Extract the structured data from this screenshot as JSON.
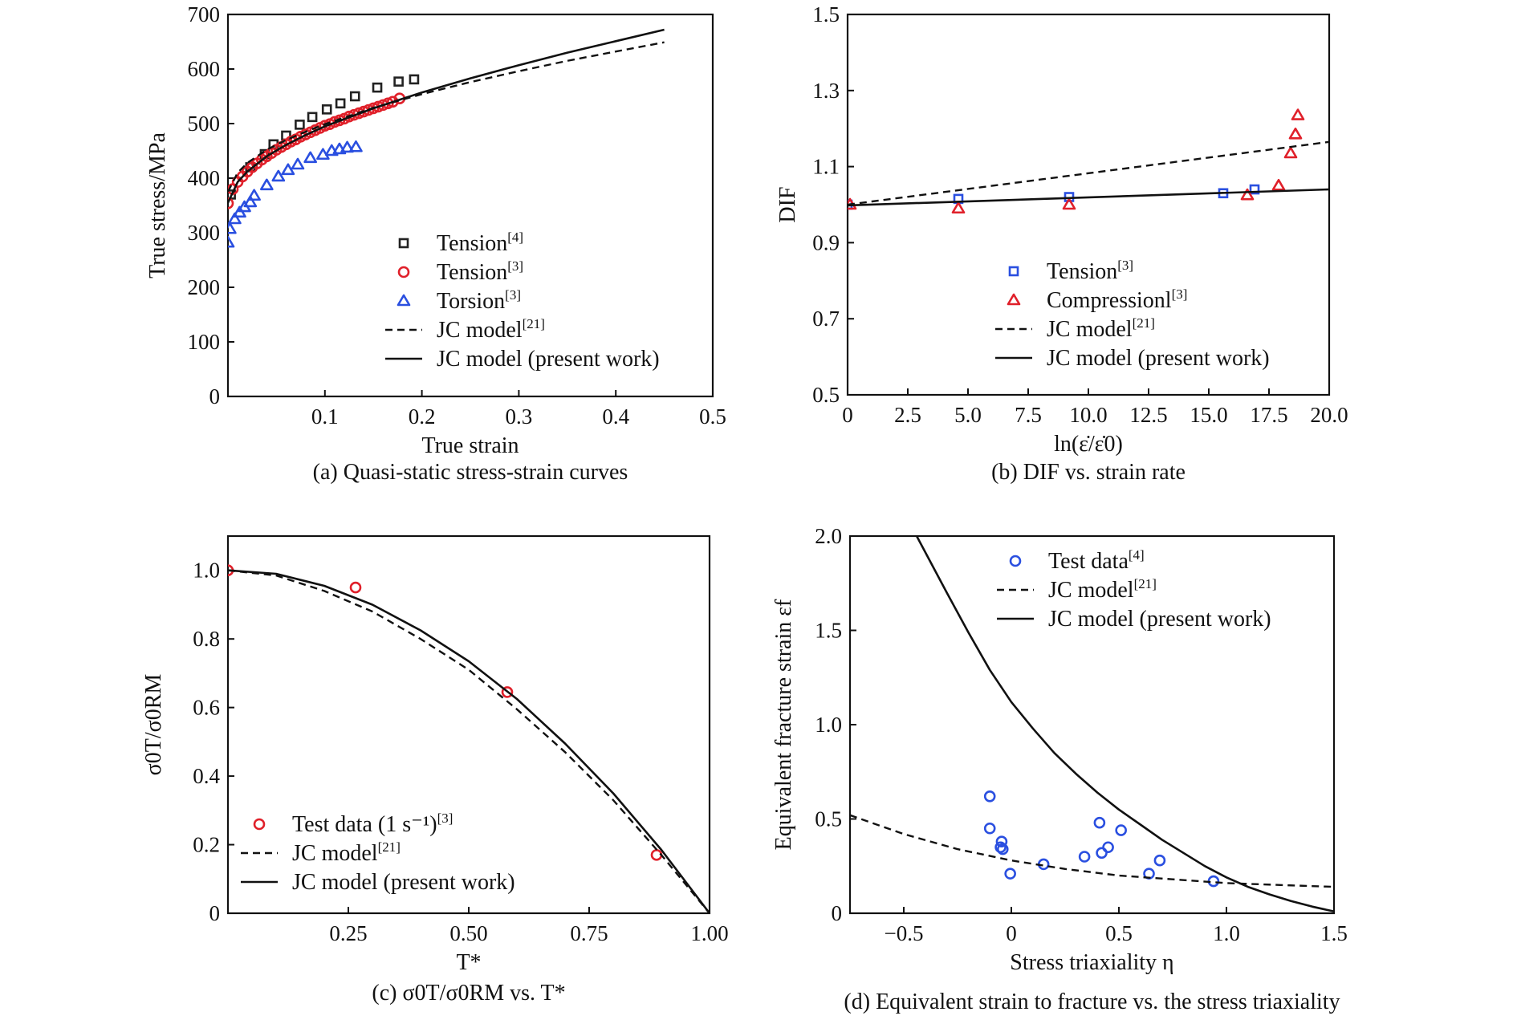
{
  "chart_data": [
    {
      "id": "a",
      "type": "scatter",
      "caption": "(a) Quasi-static stress-strain curves",
      "xlabel": "True strain",
      "ylabel": "True stress/MPa",
      "xlim": [
        0,
        0.5
      ],
      "ylim": [
        0,
        700
      ],
      "xticks": [
        0.1,
        0.2,
        0.3,
        0.4,
        0.5
      ],
      "xtick_labels": [
        "0.1",
        "0.2",
        "0.3",
        "0.4",
        "0.5"
      ],
      "yticks": [
        0,
        100,
        200,
        300,
        400,
        500,
        600,
        700
      ],
      "ytick_labels": [
        "0",
        "100",
        "200",
        "300",
        "400",
        "500",
        "600",
        "700"
      ],
      "legend_position": "lower-right",
      "series": [
        {
          "name": "Tension",
          "ref": "[4]",
          "marker": "square",
          "color": "#222222",
          "x": [
            0.003,
            0.023,
            0.038,
            0.047,
            0.06,
            0.074,
            0.087,
            0.102,
            0.116,
            0.131,
            0.154,
            0.176,
            0.192
          ],
          "y": [
            370,
            420,
            444,
            462,
            478,
            498,
            512,
            526,
            537,
            550,
            566,
            577,
            581
          ]
        },
        {
          "name": "Tension",
          "ref": "[3]",
          "marker": "circle",
          "color": "#e0202a",
          "x": [
            0.0,
            0.005,
            0.01,
            0.015,
            0.02,
            0.025,
            0.03,
            0.035,
            0.04,
            0.045,
            0.05,
            0.055,
            0.06,
            0.065,
            0.07,
            0.075,
            0.08,
            0.085,
            0.09,
            0.095,
            0.1,
            0.105,
            0.11,
            0.115,
            0.12,
            0.125,
            0.13,
            0.135,
            0.14,
            0.145,
            0.15,
            0.155,
            0.16,
            0.165,
            0.17,
            0.177
          ],
          "y": [
            354,
            380,
            393,
            403,
            412,
            420,
            427,
            434,
            440,
            446,
            452,
            457,
            462,
            467,
            471,
            476,
            480,
            484,
            488,
            492,
            496,
            499,
            503,
            506,
            509,
            513,
            516,
            519,
            522,
            525,
            528,
            531,
            534,
            537,
            540,
            546
          ]
        },
        {
          "name": "Torsion",
          "ref": "[3]",
          "marker": "triangle",
          "color": "#2a4fe0",
          "x": [
            0.0,
            0.002,
            0.007,
            0.012,
            0.017,
            0.023,
            0.027,
            0.04,
            0.052,
            0.062,
            0.072,
            0.085,
            0.098,
            0.107,
            0.115,
            0.123,
            0.132
          ],
          "y": [
            282,
            307,
            325,
            337,
            347,
            356,
            368,
            387,
            403,
            415,
            425,
            437,
            443,
            450,
            453,
            456,
            457
          ]
        },
        {
          "name": "JC model",
          "ref": "[21]",
          "line": "dashed",
          "color": "#111111",
          "x": [
            0.0,
            0.01,
            0.02,
            0.04,
            0.06,
            0.08,
            0.1,
            0.15,
            0.2,
            0.25,
            0.3,
            0.35,
            0.4,
            0.45
          ],
          "y": [
            375,
            410,
            428,
            452,
            470,
            485,
            499,
            529,
            554,
            576,
            596,
            615,
            632,
            649
          ]
        },
        {
          "name": "JC model (present work)",
          "ref": "",
          "line": "solid",
          "color": "#111111",
          "x": [
            0.0,
            0.01,
            0.02,
            0.04,
            0.06,
            0.08,
            0.1,
            0.15,
            0.2,
            0.25,
            0.3,
            0.35,
            0.4,
            0.45
          ],
          "y": [
            355,
            393,
            412,
            440,
            461,
            479,
            495,
            528,
            557,
            583,
            607,
            630,
            651,
            672
          ]
        }
      ]
    },
    {
      "id": "b",
      "type": "scatter",
      "caption": "(b) DIF vs. strain rate",
      "xlabel": "ln(ε̇/ε̇0)",
      "ylabel": "DIF",
      "xlim": [
        0,
        20
      ],
      "ylim": [
        0.5,
        1.5
      ],
      "xticks": [
        0,
        2.5,
        5,
        7.5,
        10,
        12.5,
        15,
        17.5,
        20
      ],
      "xtick_labels": [
        "0",
        "2.5",
        "5.0",
        "7.5",
        "10.0",
        "12.5",
        "15.0",
        "17.5",
        "20.0"
      ],
      "yticks": [
        0.5,
        0.7,
        0.9,
        1.1,
        1.3,
        1.5
      ],
      "ytick_labels": [
        "0.5",
        "0.7",
        "0.9",
        "1.1",
        "1.3",
        "1.5"
      ],
      "legend_position": "lower-right",
      "series": [
        {
          "name": "Tension",
          "ref": "[3]",
          "marker": "square",
          "color": "#2a4fe0",
          "x": [
            0.0,
            4.6,
            9.2,
            15.6,
            16.9
          ],
          "y": [
            1.0,
            1.015,
            1.02,
            1.03,
            1.04
          ]
        },
        {
          "name": "Compressionl",
          "ref": "[3]",
          "marker": "triangle",
          "color": "#e0202a",
          "x": [
            0.1,
            4.6,
            9.2,
            16.6,
            17.9,
            18.4,
            18.6,
            18.7
          ],
          "y": [
            1.0,
            0.99,
            1.0,
            1.025,
            1.05,
            1.135,
            1.185,
            1.235
          ]
        },
        {
          "name": "JC model",
          "ref": "[21]",
          "line": "dashed",
          "color": "#111111",
          "x": [
            0,
            20
          ],
          "y": [
            1.0,
            1.165
          ]
        },
        {
          "name": "JC model (present work)",
          "ref": "",
          "line": "solid",
          "color": "#111111",
          "x": [
            0,
            20
          ],
          "y": [
            0.998,
            1.04
          ]
        }
      ]
    },
    {
      "id": "c",
      "type": "scatter",
      "caption": "(c) σ0T/σ0RM vs. T*",
      "xlabel": "T*",
      "ylabel": "σ0T/σ0RM",
      "xlim": [
        0,
        1.0
      ],
      "ylim": [
        0,
        1.1
      ],
      "xticks": [
        0.25,
        0.5,
        0.75,
        1.0
      ],
      "xtick_labels": [
        "0.25",
        "0.50",
        "0.75",
        "1.00"
      ],
      "yticks": [
        0,
        0.2,
        0.4,
        0.6,
        0.8,
        1.0
      ],
      "ytick_labels": [
        "0",
        "0.2",
        "0.4",
        "0.6",
        "0.8",
        "1.0"
      ],
      "legend_position": "lower-left",
      "series": [
        {
          "name": "Test data (1 s⁻¹)",
          "ref": "[3]",
          "marker": "circle",
          "color": "#e0202a",
          "x": [
            0.0,
            0.265,
            0.58,
            0.89
          ],
          "y": [
            1.0,
            0.95,
            0.645,
            0.17
          ]
        },
        {
          "name": "JC model",
          "ref": "[21]",
          "line": "dashed",
          "color": "#111111",
          "x": [
            0,
            0.1,
            0.2,
            0.3,
            0.4,
            0.5,
            0.6,
            0.7,
            0.8,
            0.9,
            1.0
          ],
          "y": [
            1.0,
            0.985,
            0.94,
            0.88,
            0.8,
            0.71,
            0.595,
            0.47,
            0.33,
            0.17,
            0.0
          ]
        },
        {
          "name": "JC model (present work)",
          "ref": "",
          "line": "solid",
          "color": "#111111",
          "x": [
            0,
            0.1,
            0.2,
            0.3,
            0.4,
            0.5,
            0.6,
            0.7,
            0.8,
            0.9,
            1.0
          ],
          "y": [
            1.0,
            0.99,
            0.955,
            0.9,
            0.825,
            0.735,
            0.625,
            0.495,
            0.35,
            0.185,
            0.0
          ]
        }
      ]
    },
    {
      "id": "d",
      "type": "scatter",
      "caption": "(d) Equivalent strain to fracture vs. the stress triaxiality",
      "xlabel": "Stress triaxiality η",
      "ylabel": "Equivalent fracture strain εf",
      "xlim": [
        -0.75,
        1.5
      ],
      "ylim": [
        0,
        2.0
      ],
      "xticks": [
        -0.5,
        0,
        0.5,
        1.0,
        1.5
      ],
      "xtick_labels": [
        "−0.5",
        "0",
        "0.5",
        "1.0",
        "1.5"
      ],
      "yticks": [
        0,
        0.5,
        1.0,
        1.5,
        2.0
      ],
      "ytick_labels": [
        "0",
        "0.5",
        "1.0",
        "1.5",
        "2.0"
      ],
      "legend_position": "top-right",
      "series": [
        {
          "name": "Test data",
          "ref": "[4]",
          "marker": "circle",
          "color": "#2a4fe0",
          "x": [
            -0.1,
            -0.1,
            -0.045,
            -0.05,
            -0.04,
            -0.005,
            0.15,
            0.34,
            0.41,
            0.42,
            0.45,
            0.51,
            0.64,
            0.69,
            0.94
          ],
          "y": [
            0.62,
            0.45,
            0.38,
            0.35,
            0.34,
            0.21,
            0.26,
            0.3,
            0.48,
            0.32,
            0.35,
            0.44,
            0.21,
            0.28,
            0.17
          ]
        },
        {
          "name": "JC model",
          "ref": "[21]",
          "line": "dashed",
          "color": "#111111",
          "x": [
            -0.75,
            -0.5,
            -0.25,
            0,
            0.25,
            0.5,
            0.75,
            1.0,
            1.25,
            1.5
          ],
          "y": [
            0.52,
            0.42,
            0.34,
            0.28,
            0.235,
            0.2,
            0.18,
            0.16,
            0.15,
            0.14
          ]
        },
        {
          "name": "JC model (present work)",
          "ref": "",
          "line": "solid",
          "color": "#111111",
          "x": [
            -0.44,
            -0.3,
            -0.2,
            -0.1,
            0,
            0.1,
            0.2,
            0.3,
            0.4,
            0.5,
            0.6,
            0.7,
            0.8,
            0.9,
            1.0,
            1.1,
            1.2,
            1.3,
            1.4,
            1.5
          ],
          "y": [
            2.0,
            1.7,
            1.49,
            1.29,
            1.12,
            0.98,
            0.85,
            0.74,
            0.64,
            0.55,
            0.47,
            0.39,
            0.32,
            0.25,
            0.19,
            0.14,
            0.1,
            0.065,
            0.035,
            0.01
          ]
        }
      ]
    }
  ]
}
